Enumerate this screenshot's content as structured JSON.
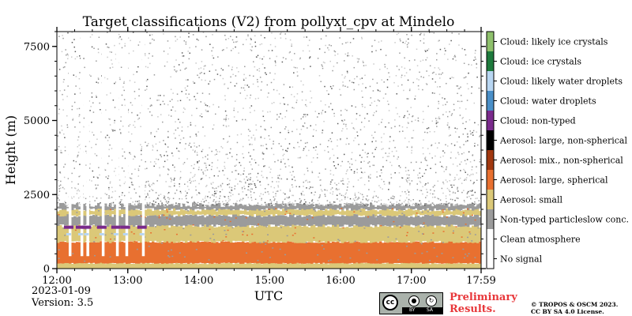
{
  "chart_data": {
    "type": "heatmap",
    "title": "Target classifications (V2) from pollyxt_cpv at Mindelo",
    "xlabel": "UTC",
    "ylabel": "Height (m)",
    "xlim": [
      "12:00",
      "17:59"
    ],
    "ylim": [
      0,
      8000
    ],
    "x_ticks": [
      "12:00",
      "13:00",
      "14:00",
      "15:00",
      "16:00",
      "17:00",
      "17:59"
    ],
    "y_ticks": [
      0,
      2500,
      5000,
      7500
    ],
    "date": "2023-01-09",
    "version": "Version: 3.5",
    "classes": [
      {
        "name": "No signal",
        "color": "#ffffff"
      },
      {
        "name": "Clean atmosphere",
        "color": "#ffffff"
      },
      {
        "name": "Non-typed particleslow conc.",
        "color": "#9b9b9b"
      },
      {
        "name": "Aerosol: small",
        "color": "#dbc878"
      },
      {
        "name": "Aerosol: large, spherical",
        "color": "#e87030"
      },
      {
        "name": "Aerosol: mix., non-spherical",
        "color": "#a1380f"
      },
      {
        "name": "Aerosol: large, non-spherical",
        "color": "#000000"
      },
      {
        "name": "Cloud: non-typed",
        "color": "#7a2a8c"
      },
      {
        "name": "Cloud: water droplets",
        "color": "#4a8fc8"
      },
      {
        "name": "Cloud: likely water droplets",
        "color": "#b8d6f2"
      },
      {
        "name": "Cloud: ice crystals",
        "color": "#1e7a3c"
      },
      {
        "name": "Cloud: likely ice crystals",
        "color": "#8ec06c"
      }
    ],
    "layers": [
      {
        "class": "Aerosol: small",
        "bottom_m": 0,
        "top_m": 180
      },
      {
        "class": "Aerosol: large, spherical",
        "bottom_m": 180,
        "top_m": 900
      },
      {
        "class": "Aerosol: small",
        "bottom_m": 900,
        "top_m": 1450
      },
      {
        "class": "Non-typed particleslow conc.",
        "bottom_m": 1450,
        "top_m": 1800
      },
      {
        "class": "Aerosol: small",
        "bottom_m": 1800,
        "top_m": 2000
      },
      {
        "class": "Non-typed particleslow conc.",
        "bottom_m": 2000,
        "top_m": 2150
      }
    ],
    "scattered_class": "Non-typed particleslow conc.",
    "scattered_range_m": [
      2150,
      8000
    ],
    "no_signal_gaps_utc": [
      "12:10",
      "12:20",
      "12:25",
      "12:38",
      "12:50",
      "12:58",
      "13:12"
    ]
  },
  "footer": {
    "date": "2023-01-09",
    "version": "Version: 3.5",
    "preliminary_line1": "Preliminary",
    "preliminary_line2": "Results.",
    "copyright_line1": "© TROPOS & OSCM 2023.",
    "copyright_line2": "CC BY SA 4.0 License.",
    "cc_label": "cc",
    "cc_by": "BY",
    "cc_sa": "SA"
  }
}
